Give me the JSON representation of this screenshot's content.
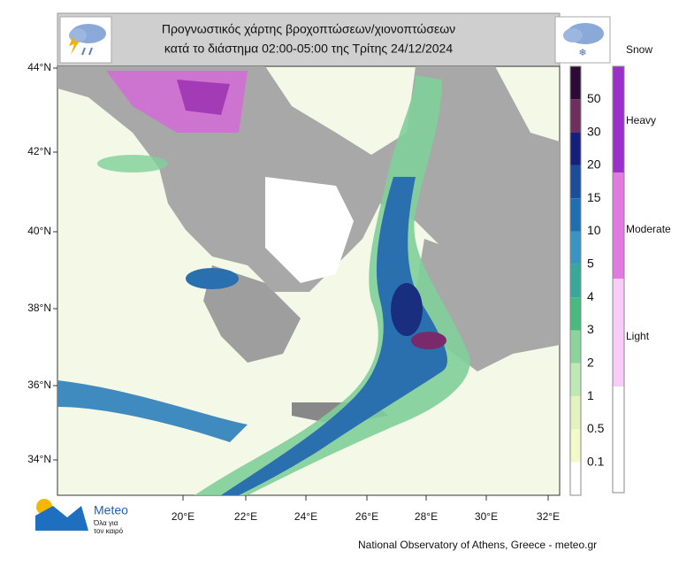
{
  "header": {
    "title_lines": [
      "Προγνωστικός χάρτης βροχοπτώσεων/χιονοπτώσεων",
      "κατά το διάστημα 02:00-05:00 της Τρίτης 24/12/2024"
    ]
  },
  "map": {
    "lat_labels": [
      "44°N",
      "42°N",
      "40°N",
      "38°N",
      "36°N",
      "34°N"
    ],
    "lon_labels": [
      "20°E",
      "22°E",
      "24°E",
      "26°E",
      "28°E",
      "30°E",
      "32°E"
    ]
  },
  "legend": {
    "rain_levels": [
      50,
      30,
      20,
      15,
      10,
      5,
      4,
      3,
      2,
      1,
      0.5,
      0.1
    ],
    "snow_title": "Snow",
    "snow_levels": [
      "Heavy",
      "Moderate",
      "Light"
    ]
  },
  "logo": {
    "name": "Meteo",
    "tagline_lines": [
      "Όλα για",
      "τον καιρό"
    ]
  },
  "footer": {
    "credit": "National Observatory of Athens, Greece - meteo.gr"
  }
}
